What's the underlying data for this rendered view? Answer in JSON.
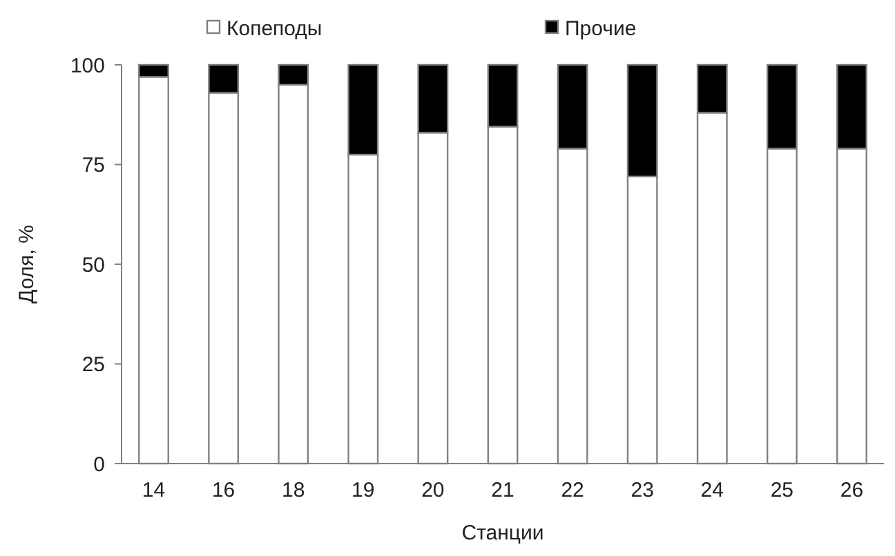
{
  "chart_data": {
    "type": "bar",
    "stacked": true,
    "xlabel": "Станции",
    "ylabel": "Доля, %",
    "categories": [
      "14",
      "16",
      "18",
      "19",
      "20",
      "21",
      "22",
      "23",
      "24",
      "25",
      "26"
    ],
    "series": [
      {
        "name": "Копеподы",
        "color": "#ffffff",
        "values": [
          97,
          93,
          95,
          77.5,
          83,
          84.5,
          79,
          72,
          88,
          79,
          79
        ]
      },
      {
        "name": "Прочие",
        "color": "#000000",
        "values": [
          3,
          7,
          5,
          22.5,
          17,
          15.5,
          21,
          28,
          12,
          21,
          21
        ]
      }
    ],
    "ylim": [
      0,
      100
    ],
    "yticks": [
      0,
      25,
      50,
      75,
      100
    ],
    "grid": false,
    "legend": "top"
  }
}
